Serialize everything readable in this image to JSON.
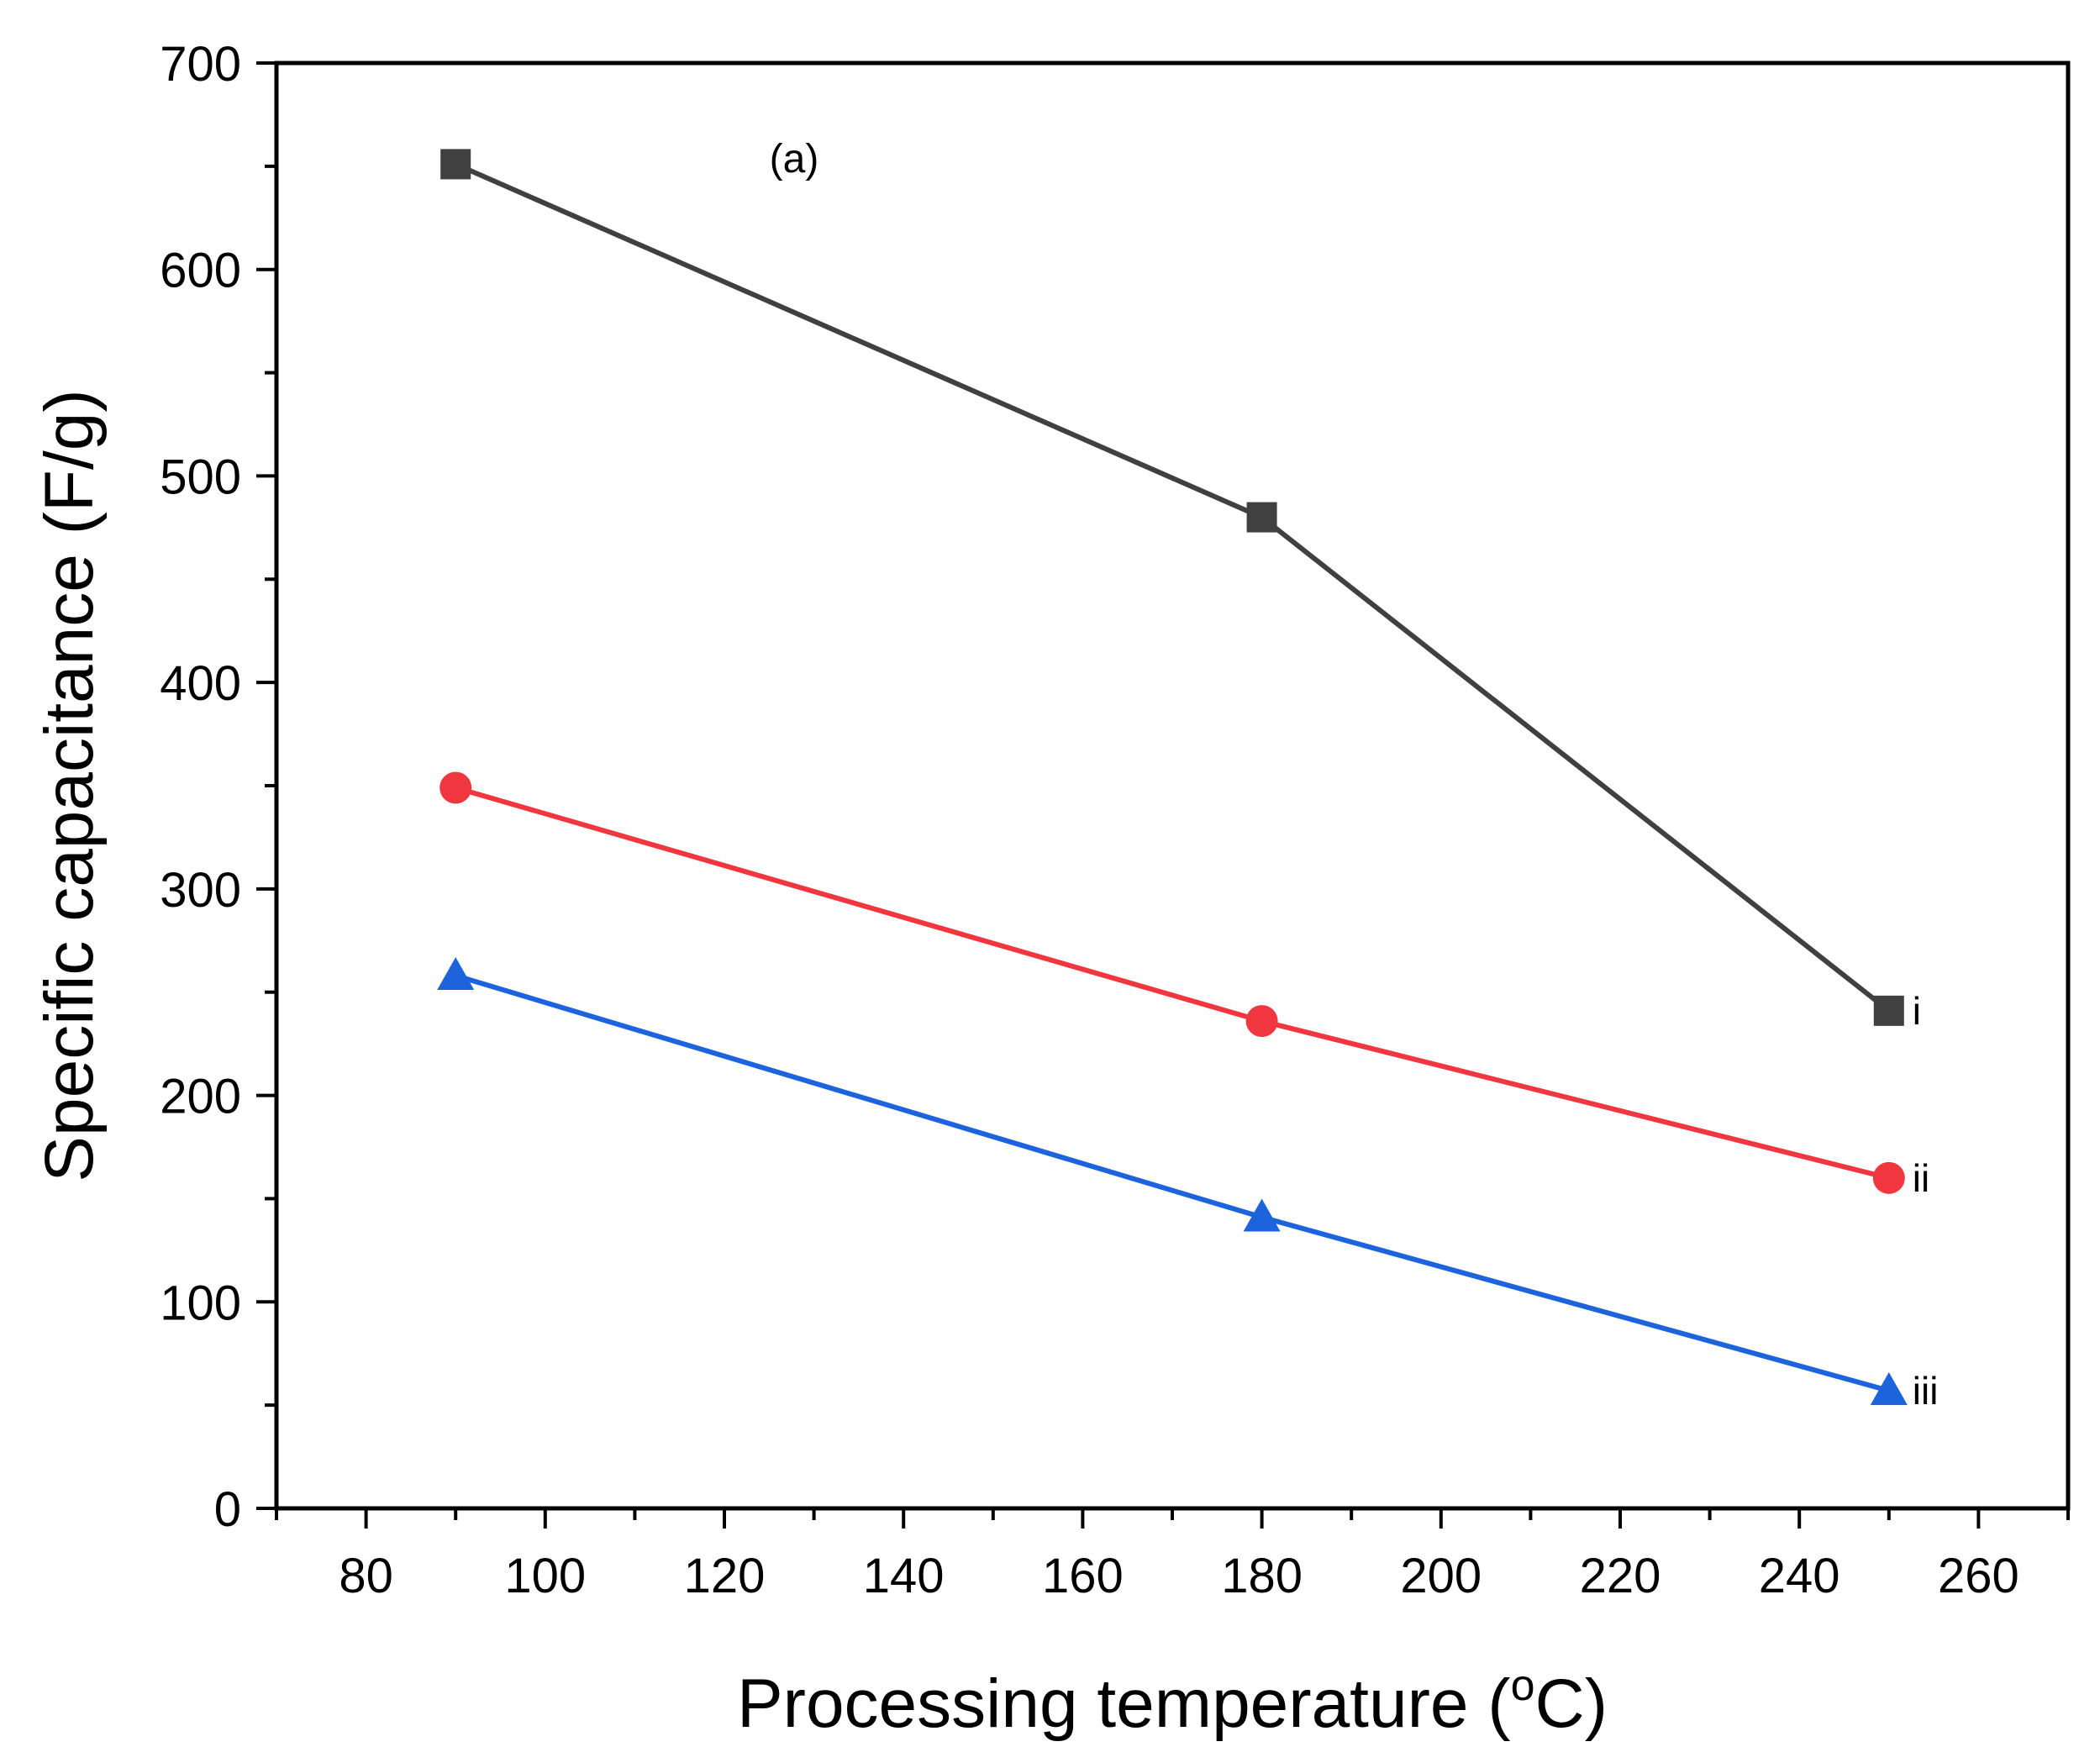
{
  "chart_data": {
    "type": "line",
    "title": "",
    "annotation": "(a)",
    "xlabel": "Processing temperature",
    "xlabel_unit_open": "(",
    "xlabel_unit_sup": "o",
    "xlabel_unit_rest": "C)",
    "ylabel": "Specific capacitance (F/g)",
    "xlim": [
      70,
      270
    ],
    "ylim": [
      0,
      700
    ],
    "x_ticks": [
      80,
      100,
      120,
      140,
      160,
      180,
      200,
      220,
      240,
      260
    ],
    "y_ticks": [
      0,
      100,
      200,
      300,
      400,
      500,
      600,
      700
    ],
    "grid": false,
    "x": [
      90,
      180,
      250
    ],
    "series": [
      {
        "name": "i",
        "marker": "square",
        "color": "#404040",
        "values": [
          651,
          480,
          241
        ]
      },
      {
        "name": "ii",
        "marker": "circle",
        "color": "#f0373f",
        "values": [
          349,
          236,
          160
        ]
      },
      {
        "name": "iii",
        "marker": "triangle",
        "color": "#1d63dc",
        "values": [
          258,
          141,
          57
        ]
      }
    ]
  }
}
